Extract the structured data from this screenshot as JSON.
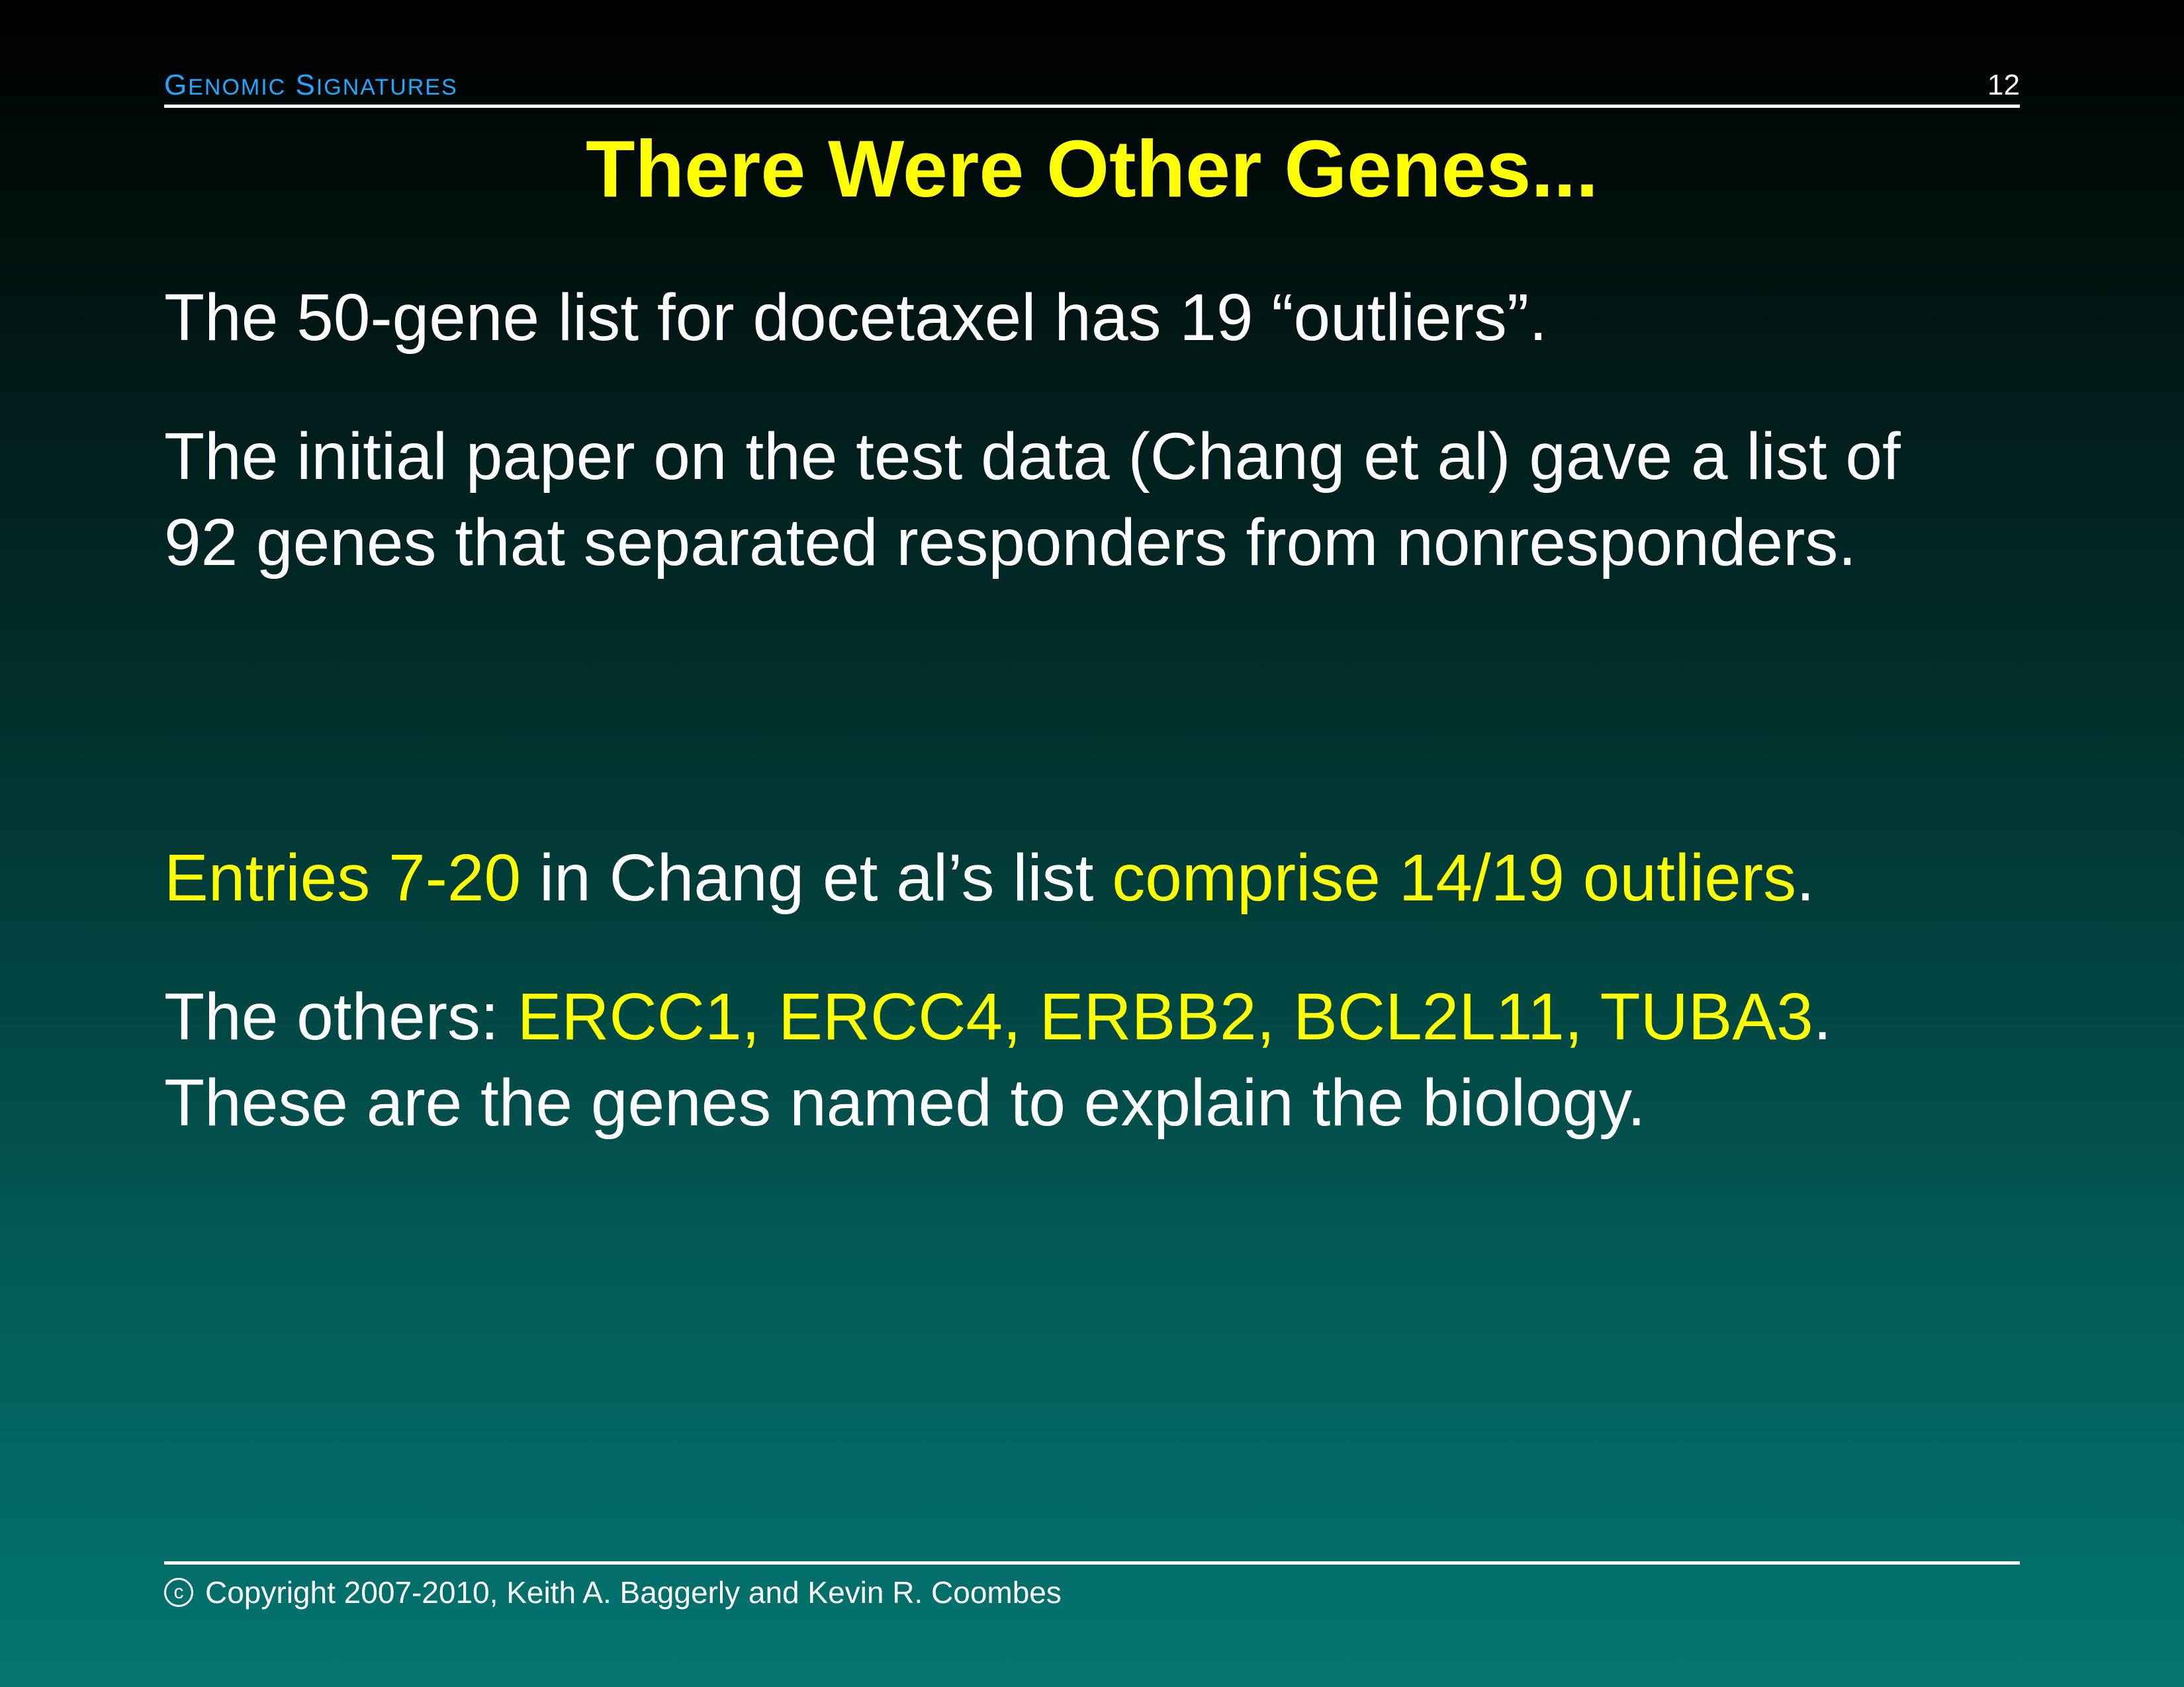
{
  "header": {
    "title_cap1": "G",
    "title_rest1": "ENOMIC",
    "title_cap2": "S",
    "title_rest2": "IGNATURES",
    "page_number": "12"
  },
  "slide": {
    "title": "There Were Other Genes...",
    "para1": "The 50-gene list for docetaxel has 19 “outliers”.",
    "para2_line1": "The initial paper on the test data (Chang et al) gave a list of",
    "para2_line2": "92 genes that separated responders from nonresponders.",
    "para3_hl1": "Entries 7-20",
    "para3_mid": " in Chang et al’s list ",
    "para3_hl2": "comprise 14/19 outliers",
    "para3_end": ".",
    "para4_start": "The others: ",
    "para4_genes": "ERCC1, ERCC4, ERBB2, BCL2L11, TUBA3",
    "para4_end": ".",
    "para4_line2": "These are the genes named to explain the biology."
  },
  "footer": {
    "copyright_symbol": "c",
    "text": "Copyright 2007-2010, Keith A. Baggerly and Kevin R. Coombes"
  },
  "colors": {
    "title": "#ffff00",
    "highlight": "#ffff00",
    "header": "#1fa8ff",
    "text": "#ffffff"
  }
}
